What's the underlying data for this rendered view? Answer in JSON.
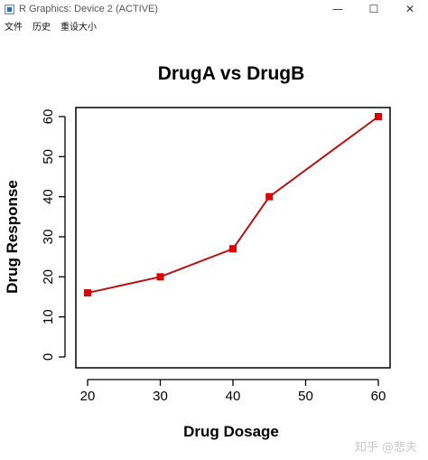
{
  "window": {
    "title": "R Graphics: Device 2 (ACTIVE)",
    "controls": {
      "minimize": "—",
      "maximize": "☐",
      "close": "✕"
    }
  },
  "menu": {
    "items": [
      "文件",
      "历史",
      "重设大小"
    ]
  },
  "chart_data": {
    "type": "line",
    "title": "DrugA vs DrugB",
    "xlabel": "Drug Dosage",
    "ylabel": "Drug Response",
    "x": [
      20,
      30,
      40,
      45,
      60
    ],
    "y": [
      16,
      20,
      27,
      40,
      60
    ],
    "xlim": [
      20,
      60
    ],
    "ylim": [
      0,
      60
    ],
    "xticks": [
      20,
      30,
      40,
      50,
      60
    ],
    "yticks": [
      0,
      10,
      20,
      30,
      40,
      50,
      60
    ],
    "line_color": "#b81212",
    "marker_color": "#dd0000",
    "marker": "square",
    "grid": false
  },
  "watermark": "知乎 @悲夫"
}
